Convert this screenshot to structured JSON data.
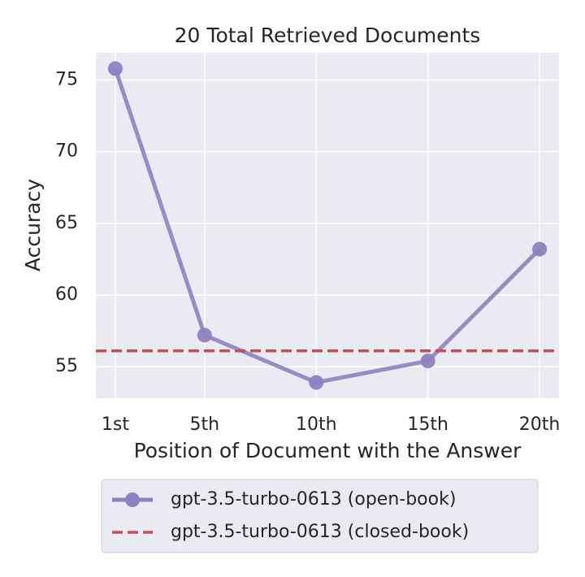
{
  "chart_data": {
    "type": "line",
    "title": "20 Total Retrieved Documents",
    "xlabel": "Position of Document with the Answer",
    "ylabel": "Accuracy",
    "xlim": [
      0.13,
      20.87
    ],
    "ylim": [
      52.8,
      76.9
    ],
    "xticks": [
      {
        "value": 1,
        "label": "1st"
      },
      {
        "value": 5,
        "label": "5th"
      },
      {
        "value": 10,
        "label": "10th"
      },
      {
        "value": 15,
        "label": "15th"
      },
      {
        "value": 20,
        "label": "20th"
      }
    ],
    "yticks": [
      55,
      60,
      65,
      70,
      75
    ],
    "grid": true,
    "legend": "lower center",
    "series": [
      {
        "name": "gpt-3.5-turbo-0613 (open-book)",
        "color": "#8d82c1",
        "x": [
          1,
          5,
          10,
          15,
          20
        ],
        "values": [
          75.8,
          57.2,
          53.9,
          55.4,
          63.2
        ]
      },
      {
        "name": "gpt-3.5-turbo-0613 (closed-book)",
        "color": "#c44e52",
        "style": "dashed",
        "value": 56.1
      }
    ]
  }
}
